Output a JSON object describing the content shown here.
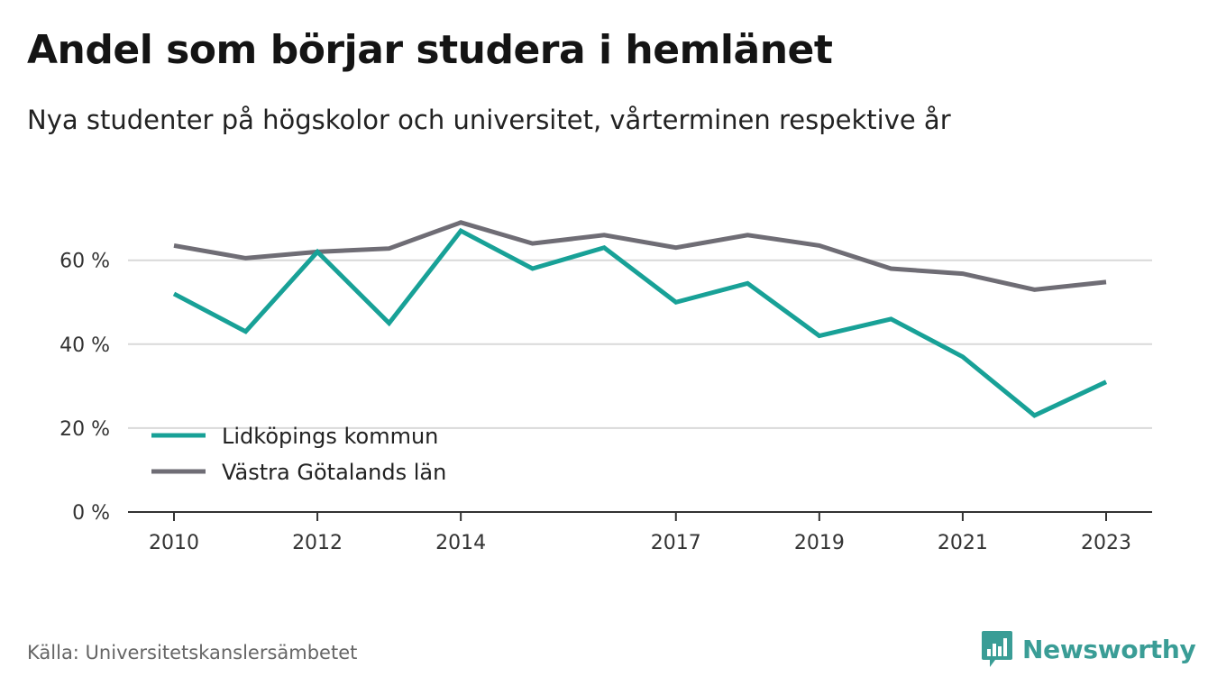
{
  "title": "Andel som börjar studera i hemlänet",
  "subtitle": "Nya studenter på högskolor och universitet, vårterminen respektive år",
  "source": "Källa: Universitetskanslersämbetet",
  "brand": "Newsworthy",
  "colors": {
    "teal": "#18a197",
    "gray": "#6f6d75",
    "grid": "#d9d9d9",
    "axis": "#333333",
    "brand": "#3a9d96"
  },
  "chart_data": {
    "type": "line",
    "x": [
      2010,
      2011,
      2012,
      2013,
      2014,
      2015,
      2016,
      2017,
      2018,
      2019,
      2020,
      2021,
      2022,
      2023
    ],
    "x_tick_labels": [
      "2010",
      "2012",
      "2014",
      "2017",
      "2019",
      "2021",
      "2023"
    ],
    "x_ticks": [
      2010,
      2012,
      2014,
      2017,
      2019,
      2021,
      2023
    ],
    "y_ticks": [
      0,
      20,
      40,
      60
    ],
    "y_tick_labels": [
      "0 %",
      "20 %",
      "40 %",
      "60 %"
    ],
    "ylim": [
      0,
      72
    ],
    "grid": true,
    "legend_placement": "bottom-left",
    "series": [
      {
        "name": "Lidköpings kommun",
        "color": "#18a197",
        "values": [
          52,
          43,
          62,
          45,
          67,
          58,
          63,
          50,
          54.5,
          42,
          46,
          37,
          23,
          31
        ]
      },
      {
        "name": "Västra Götalands län",
        "color": "#6f6d75",
        "values": [
          63.5,
          60.5,
          62,
          62.8,
          69,
          64,
          66,
          63,
          66,
          63.5,
          58,
          56.8,
          53,
          54.8
        ]
      }
    ]
  }
}
